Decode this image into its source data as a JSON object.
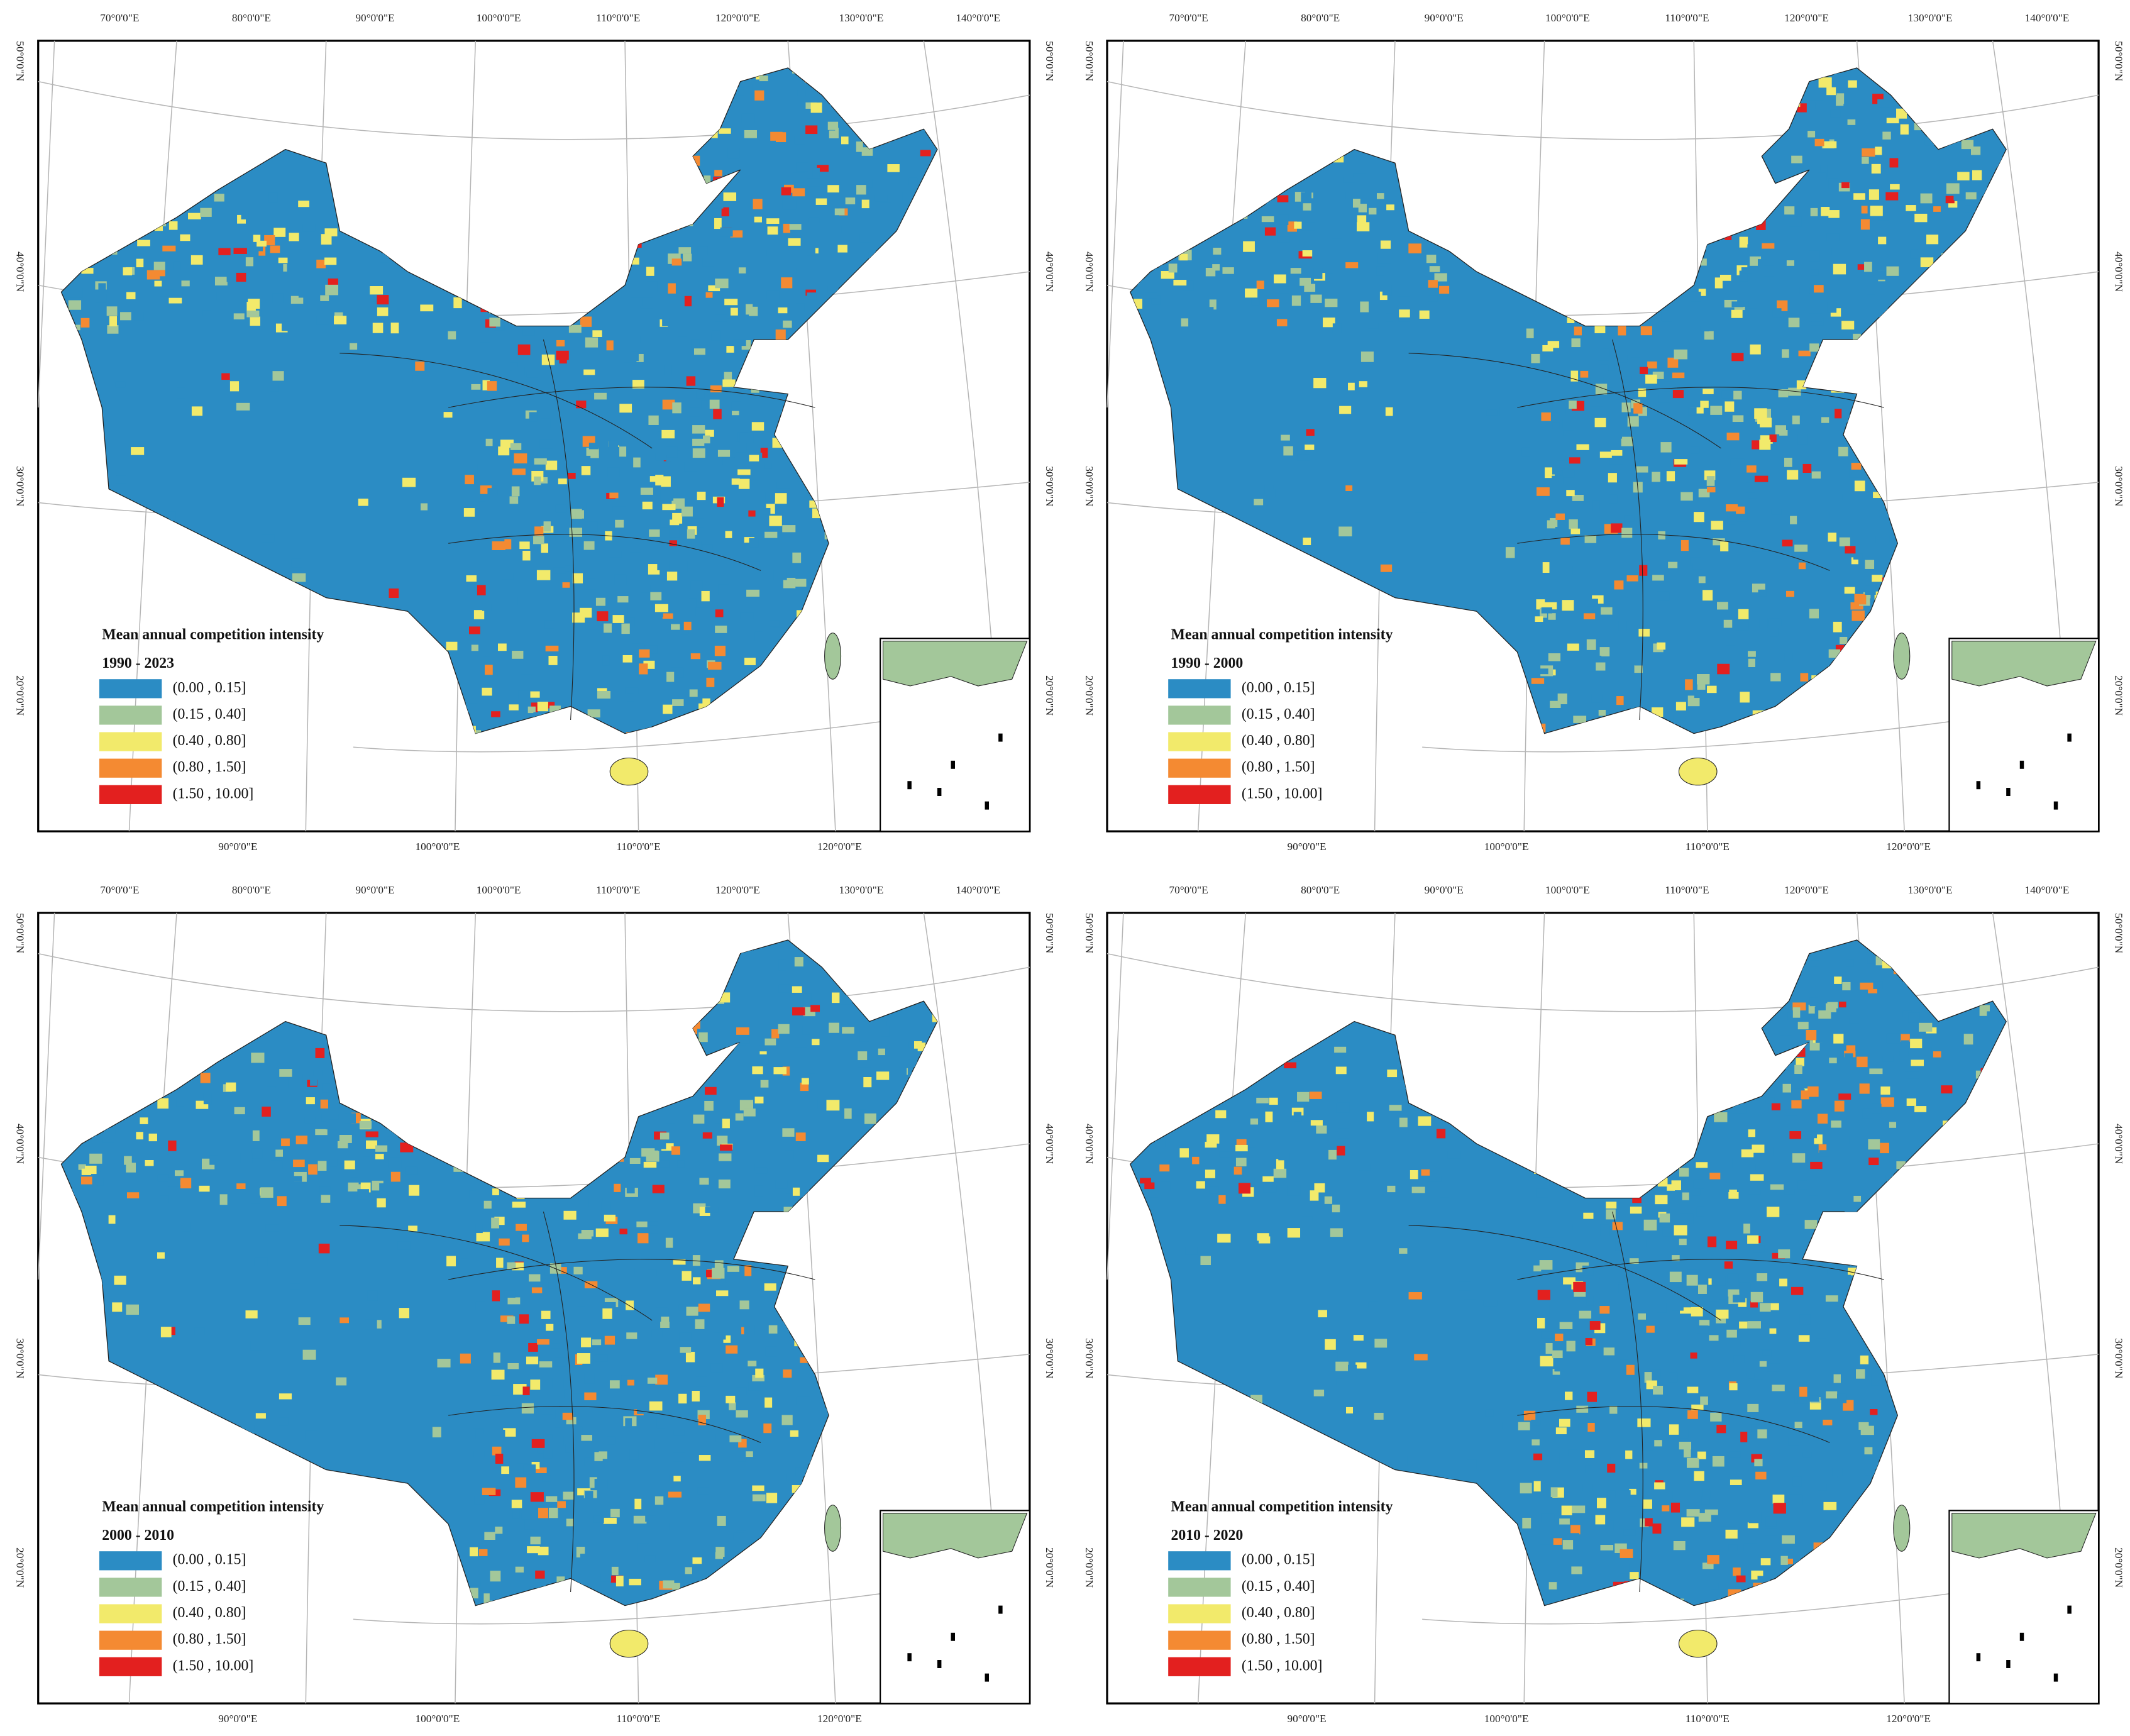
{
  "graticule": {
    "top": [
      "70°0'0\"E",
      "80°0'0\"E",
      "90°0'0\"E",
      "100°0'0\"E",
      "110°0'0\"E",
      "120°0'0\"E",
      "130°0'0\"E",
      "140°0'0\"E"
    ],
    "bottom": [
      "90°0'0\"E",
      "100°0'0\"E",
      "110°0'0\"E",
      "120°0'0\"E"
    ],
    "side": [
      "50°0'0\"N",
      "40°0'0\"N",
      "30°0'0\"N",
      "20°0'0\"N"
    ]
  },
  "panels": [
    {
      "title": "Mean annual competition intensity",
      "period": "1990 - 2023",
      "legend": [
        {
          "label": "(0.00 , 0.15]",
          "color": "#2b8cc4"
        },
        {
          "label": "(0.15 , 0.40]",
          "color": "#a3c79a"
        },
        {
          "label": "(0.40 , 0.80]",
          "color": "#f2ea6b"
        },
        {
          "label": "(0.80 , 1.50]",
          "color": "#f48a32"
        },
        {
          "label": "(1.50 , 10.00]",
          "color": "#e3201f"
        }
      ]
    },
    {
      "title": "Mean annual competition intensity",
      "period": "1990 - 2000",
      "legend": [
        {
          "label": "(0.00 , 0.15]",
          "color": "#2b8cc4"
        },
        {
          "label": "(0.15 , 0.40]",
          "color": "#a3c79a"
        },
        {
          "label": "(0.40 , 0.80]",
          "color": "#f2ea6b"
        },
        {
          "label": "(0.80 , 1.50]",
          "color": "#f48a32"
        },
        {
          "label": "(1.50 , 10.00]",
          "color": "#e3201f"
        }
      ]
    },
    {
      "title": "Mean annual competition intensity",
      "period": "2000 - 2010",
      "legend": [
        {
          "label": "(0.00 , 0.15]",
          "color": "#2b8cc4"
        },
        {
          "label": "(0.15 , 0.40]",
          "color": "#a3c79a"
        },
        {
          "label": "(0.40 , 0.80]",
          "color": "#f2ea6b"
        },
        {
          "label": "(0.80 , 1.50]",
          "color": "#f48a32"
        },
        {
          "label": "(1.50 , 10.00]",
          "color": "#e3201f"
        }
      ]
    },
    {
      "title": "Mean annual competition intensity",
      "period": "2010 - 2020",
      "legend": [
        {
          "label": "(0.00 , 0.15]",
          "color": "#2b8cc4"
        },
        {
          "label": "(0.15 , 0.40]",
          "color": "#a3c79a"
        },
        {
          "label": "(0.40 , 0.80]",
          "color": "#f2ea6b"
        },
        {
          "label": "(0.80 , 1.50]",
          "color": "#f48a32"
        },
        {
          "label": "(1.50 , 10.00]",
          "color": "#e3201f"
        }
      ]
    }
  ]
}
